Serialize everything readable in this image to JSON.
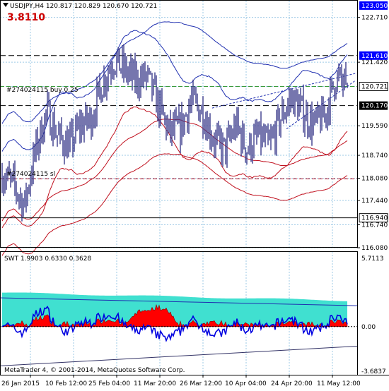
{
  "header": {
    "symbol_line": "USDJPY,H4  120.817 120.829 120.670 120.721",
    "indicator_value": "3.8110"
  },
  "footer": {
    "copyright": "MetaTrader 4, © 2001-2014, MetaQuotes Software Corp."
  },
  "colors": {
    "candles": "#3c3c8c",
    "envelope": "#1f2fb0",
    "bb_red": "#c0101e",
    "osc_cyan": "#40e0d0",
    "osc_red": "#ff0000",
    "osc_blue": "#0000e0",
    "marker_blue_bg": "#0000ff",
    "marker_black_bg": "#000000",
    "grid": "#9ec9e6"
  },
  "chart_data": [
    {
      "type": "candlestick",
      "title": "USDJPY,H4  120.817 120.829 120.670 120.721",
      "ylim": [
        116.08,
        123.19
      ],
      "y_ticks": [
        122.71,
        121.42,
        120.721,
        119.59,
        118.74,
        118.08,
        117.44,
        116.74,
        116.08
      ],
      "x_labels": [
        "26 Jan 2015",
        "10 Feb 12:00",
        "25 Feb 04:00",
        "11 Mar 20:00",
        "26 Mar 12:00",
        "10 Apr 04:00",
        "24 Apr 20:00",
        "11 May 12:00"
      ],
      "close_approx": [
        118.2,
        117.9,
        117.3,
        118.9,
        120.0,
        119.3,
        119.0,
        119.6,
        119.8,
        120.8,
        121.5,
        121.2,
        120.9,
        121.0,
        120.2,
        119.4,
        119.5,
        120.3,
        120.0,
        119.2,
        118.9,
        119.6,
        118.9,
        119.3,
        119.0,
        119.8,
        120.4,
        120.0,
        119.6,
        119.9,
        121.0,
        120.7
      ],
      "price_labels": [
        "123.050",
        "121.610",
        "120.721",
        "120.170",
        "116.940"
      ],
      "annotations": [
        "#274024115 buy 0.25",
        "#274024115 sl"
      ],
      "levels": [
        {
          "value": 123.05,
          "label": "123.050",
          "style": "solid"
        },
        {
          "value": 121.61,
          "label": "121.610",
          "style": "dashed"
        },
        {
          "value": 120.721,
          "label": "120.721",
          "style": "dashed-green"
        },
        {
          "value": 120.17,
          "label": "120.170",
          "style": "dashed"
        },
        {
          "value": 118.06,
          "label": "#274024115 sl",
          "style": "dashed-red"
        },
        {
          "value": 116.94,
          "label": "116.940",
          "style": "solid"
        }
      ],
      "indicator_value": "3.8110"
    },
    {
      "type": "area",
      "title": "SWT 1.9903 0.6330 0.3628",
      "series": [
        {
          "name": "SWT",
          "last": 1.9903
        },
        {
          "last": 0.633
        },
        {
          "last": 0.3628
        }
      ],
      "ylim": [
        -3.6837,
        5.7113
      ],
      "y_ticks": [
        5.7113,
        0.0,
        -3.6837
      ],
      "y_tick_labels": [
        "5.7113",
        "0.00",
        "-3.6837"
      ]
    }
  ]
}
